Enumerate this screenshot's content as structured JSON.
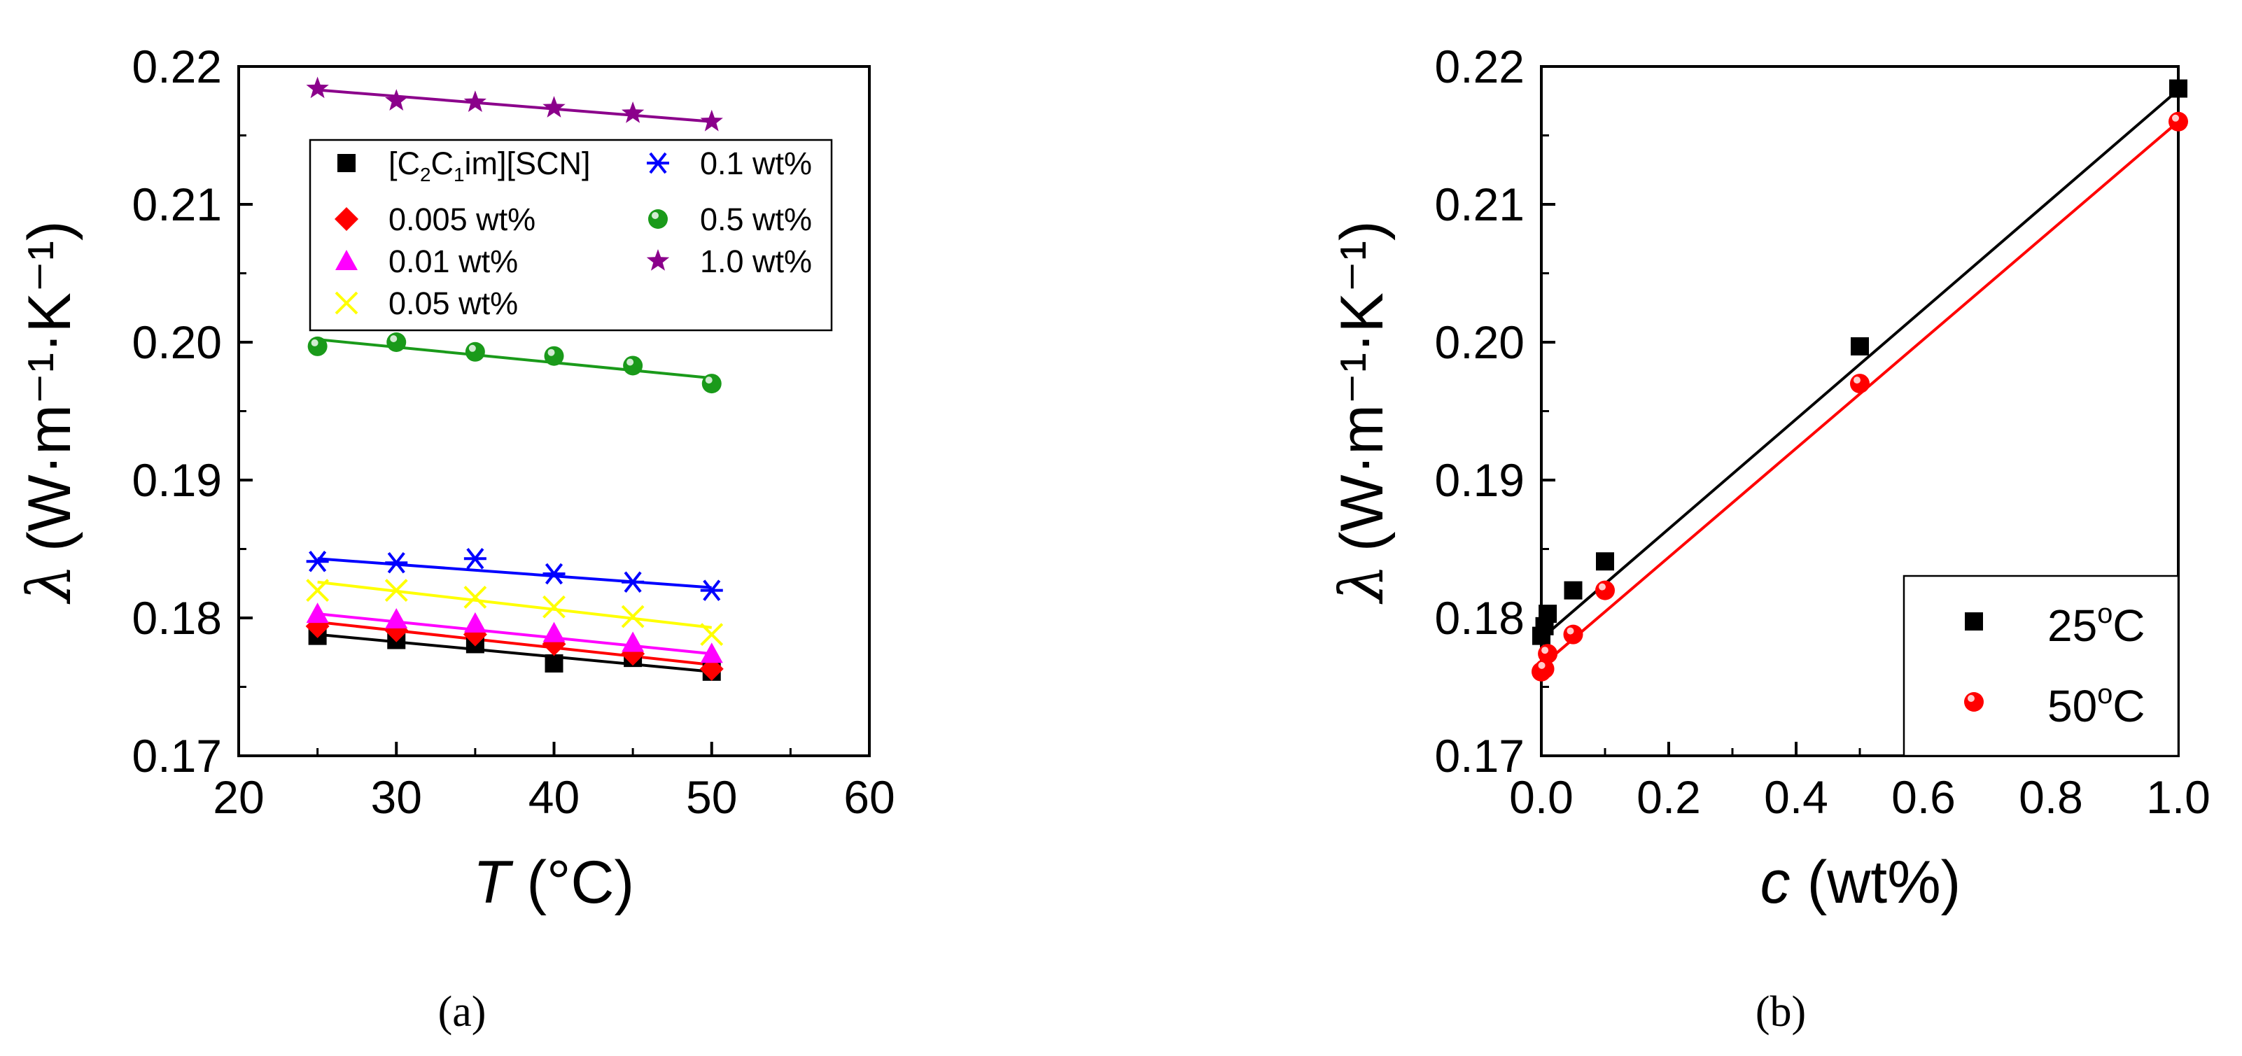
{
  "chart_data": [
    {
      "type": "scatter",
      "panel_label": "(a)",
      "xlabel_symbol": "T",
      "xlabel_unit": " (°C)",
      "ylabel_symbol": "λ",
      "ylabel_unit": "(W·m⁻¹·K⁻¹)",
      "xlim": [
        20,
        60
      ],
      "ylim": [
        0.17,
        0.22
      ],
      "xticks": [
        "20",
        "30",
        "40",
        "50",
        "60"
      ],
      "yticks": [
        "0.17",
        "0.18",
        "0.19",
        "0.20",
        "0.21",
        "0.22"
      ],
      "x": [
        25,
        30,
        35,
        40,
        45,
        50
      ],
      "legend_position": "top-left",
      "series": [
        {
          "name": "[C2C1im][SCN]",
          "marker": "square",
          "color": "#000000",
          "values": [
            0.1787,
            0.1784,
            0.1781,
            0.1767,
            0.1771,
            0.1761
          ],
          "fit": [
            0.1788,
            0.1761
          ]
        },
        {
          "name": "0.005 wt%",
          "marker": "diamond",
          "color": "#ff0000",
          "values": [
            0.1794,
            0.1791,
            0.1788,
            0.1781,
            0.1774,
            0.1763
          ],
          "fit": [
            0.1797,
            0.1766
          ]
        },
        {
          "name": "0.01 wt%",
          "marker": "triangle",
          "color": "#ff00ff",
          "values": [
            0.1803,
            0.1799,
            0.1796,
            0.1789,
            0.1782,
            0.1774
          ],
          "fit": [
            0.1803,
            0.1774
          ]
        },
        {
          "name": "0.05 wt%",
          "marker": "x",
          "color": "#ffff00",
          "values": [
            0.182,
            0.182,
            0.1815,
            0.1808,
            0.1801,
            0.1788
          ],
          "fit": [
            0.1826,
            0.1793
          ]
        },
        {
          "name": "0.1 wt%",
          "marker": "asterisk",
          "color": "#0000ff",
          "values": [
            0.1841,
            0.184,
            0.1843,
            0.1832,
            0.1826,
            0.182
          ],
          "fit": [
            0.1843,
            0.1822
          ]
        },
        {
          "name": "0.5 wt%",
          "marker": "sphere",
          "color": "#1a9a1a",
          "values": [
            0.1997,
            0.2,
            0.1993,
            0.199,
            0.1983,
            0.197
          ],
          "fit": [
            0.2002,
            0.1974
          ]
        },
        {
          "name": "1.0 wt%",
          "marker": "star",
          "color": "#8b008b",
          "values": [
            0.2184,
            0.2175,
            0.2174,
            0.217,
            0.2166,
            0.216
          ],
          "fit": [
            0.2183,
            0.216
          ]
        }
      ],
      "legend_labels": {
        "s0_pre": "[C",
        "s0_sub1": "2",
        "s0_mid": "C",
        "s0_sub2": "1",
        "s0_post": "im][SCN]"
      }
    },
    {
      "type": "scatter",
      "panel_label": "(b)",
      "xlabel_symbol": "c",
      "xlabel_unit": " (wt%)",
      "ylabel_symbol": "λ",
      "ylabel_unit": "(W·m⁻¹·K⁻¹)",
      "xlim": [
        0.0,
        1.0
      ],
      "ylim": [
        0.17,
        0.22
      ],
      "xticks": [
        "0.0",
        "0.2",
        "0.4",
        "0.6",
        "0.8",
        "1.0"
      ],
      "yticks": [
        "0.17",
        "0.18",
        "0.19",
        "0.20",
        "0.21",
        "0.22"
      ],
      "x": [
        0,
        0.005,
        0.01,
        0.05,
        0.1,
        0.5,
        1.0
      ],
      "legend_position": "bottom-right",
      "series": [
        {
          "name": "25°C",
          "label_num": "25",
          "label_unit": "C",
          "marker": "square",
          "color": "#000000",
          "values": [
            0.1787,
            0.1794,
            0.1803,
            0.182,
            0.1841,
            0.1997,
            0.2184
          ],
          "fit": [
            0.1785,
            0.2183
          ]
        },
        {
          "name": "50°C",
          "label_num": "50",
          "label_unit": "C",
          "marker": "sphere",
          "color": "#ff0000",
          "values": [
            0.1761,
            0.1763,
            0.1774,
            0.1788,
            0.182,
            0.197,
            0.216
          ],
          "fit": [
            0.1765,
            0.216
          ]
        }
      ]
    }
  ]
}
